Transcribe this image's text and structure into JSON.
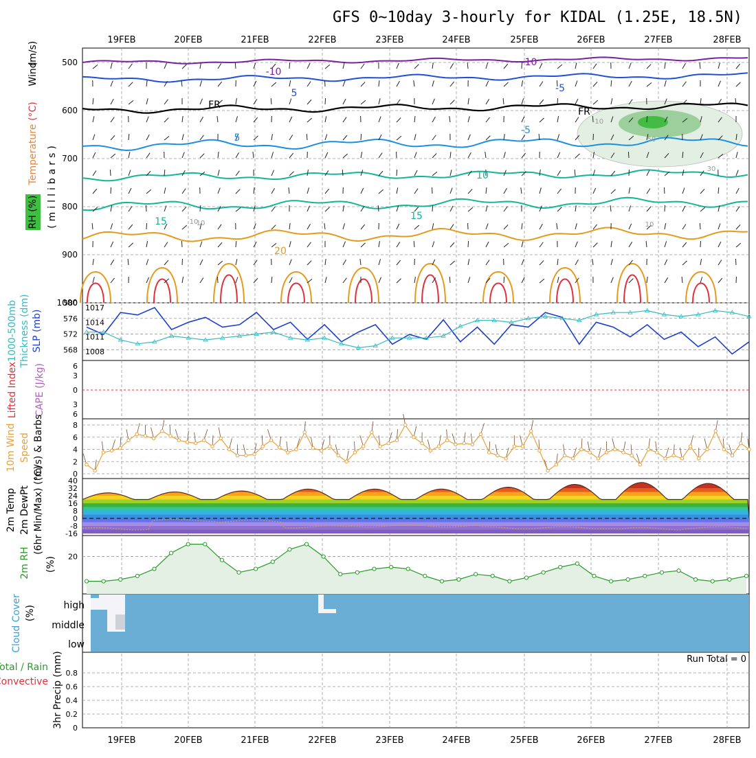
{
  "title": "GFS 0~10day 3-hourly for KIDAL (1.25E, 18.5N)",
  "dates": [
    "19FEB",
    "20FEB",
    "21FEB",
    "22FEB",
    "23FEB",
    "24FEB",
    "25FEB",
    "26FEB",
    "27FEB",
    "28FEB"
  ],
  "colors": {
    "grid": "#999999",
    "temp_contour_cold": "#7b1fa2",
    "temp_contour_blue": "#1e4fd6",
    "temp_contour_lightblue": "#1a8fe0",
    "temp_contour_teal": "#12b59a",
    "temp_contour_orange": "#e69a1c",
    "temp_contour_red": "#e0303b",
    "slp_line": "#1c3fcf",
    "thickness_line": "#33bbc0",
    "wind_speed": "#e8a13a",
    "rh_line": "#2a9a2a",
    "cloud": "#6aaed6"
  },
  "panels": {
    "upper": {
      "labels": {
        "wind": "Wind",
        "units_ms": "(m/s)",
        "temperature": "Temperature",
        "units_c": "(°C)",
        "rh": "RH (%)",
        "millibars": "(millibars)"
      },
      "yticks": [
        "500",
        "600",
        "700",
        "800",
        "900",
        "1000"
      ],
      "contour_labels": [
        "-10",
        "-10",
        "5",
        "-5",
        "FR",
        "FR",
        "5",
        "-5",
        "10",
        "15",
        "15",
        "10",
        "-10",
        "20",
        "10",
        "50",
        "30",
        "10"
      ]
    },
    "slp": {
      "labels": {
        "thickness": "1000-500mb",
        "thickness2": "Thickness (dm)",
        "slp": "SLP (mb)"
      },
      "yticks_left": [
        "580",
        "576",
        "572",
        "568"
      ],
      "yticks_right": [
        "1017",
        "1014",
        "1011",
        "1008"
      ]
    },
    "lifted": {
      "labels": {
        "lifted": "Lifted Index",
        "cape": "CAPE (J/kg)"
      },
      "yticks": [
        "6",
        "3",
        "0",
        "3",
        "6"
      ]
    },
    "wind10": {
      "labels": {
        "l1": "10m Wind",
        "l2": "Speed",
        "l3": "(m/s) & Barbs"
      },
      "yticks": [
        "8",
        "6",
        "4",
        "2",
        "0"
      ]
    },
    "temp2m": {
      "labels": {
        "l1": "2m Temp",
        "l2": "2m DewPt",
        "l3": "(6hr Min/Max) (°C)"
      },
      "yticks": [
        "40",
        "32",
        "24",
        "16",
        "8",
        "0",
        "-8",
        "-16"
      ]
    },
    "rh2m": {
      "labels": {
        "l1": "2m RH",
        "l2": "(%)"
      },
      "yticks": [
        "20"
      ]
    },
    "cloud": {
      "labels": {
        "l1": "Cloud Cover",
        "l2": "(%)"
      },
      "levels": [
        "high",
        "middle",
        "low"
      ]
    },
    "precip": {
      "labels": {
        "l1": "Total / Rain",
        "l2": "Convective",
        "l3": "3hr Precip (mm)"
      },
      "yticks": [
        "0.8",
        "0.6",
        "0.4",
        "0.2",
        "0"
      ],
      "run_total": "Run Total = 0"
    }
  },
  "chart_data": [
    {
      "type": "line",
      "title": "SLP (mb)",
      "x": [
        "18FEB12",
        "18FEB18",
        "19FEB00",
        "19FEB06",
        "19FEB12",
        "19FEB18",
        "20FEB00",
        "20FEB06",
        "20FEB12",
        "20FEB18",
        "21FEB00",
        "21FEB06",
        "21FEB12",
        "21FEB18",
        "22FEB00",
        "22FEB06",
        "22FEB12",
        "22FEB18",
        "23FEB00",
        "23FEB06",
        "23FEB12",
        "23FEB18",
        "24FEB00",
        "24FEB06",
        "24FEB12",
        "24FEB18",
        "25FEB00",
        "25FEB06",
        "25FEB12",
        "25FEB18",
        "26FEB00",
        "26FEB06",
        "26FEB12",
        "26FEB18",
        "27FEB00",
        "27FEB06",
        "27FEB12",
        "27FEB18",
        "28FEB00",
        "28FEB06"
      ],
      "series": [
        {
          "name": "SLP (mb)",
          "values": [
            1013,
            1011.5,
            1016,
            1015.5,
            1017,
            1012.5,
            1014,
            1015,
            1013,
            1013.5,
            1016,
            1012.5,
            1014,
            1010.5,
            1013.5,
            1010,
            1012,
            1013.5,
            1009.5,
            1011.5,
            1010.5,
            1014.5,
            1010,
            1013,
            1009.5,
            1013.5,
            1013,
            1016,
            1015,
            1009.5,
            1014,
            1013,
            1011,
            1013.5,
            1010.5,
            1012,
            1009,
            1011,
            1007.5,
            1010
          ]
        },
        {
          "name": "1000-500mb Thickness (dm)",
          "values": [
            572.5,
            572.5,
            570.5,
            569.5,
            570,
            571.5,
            571,
            570.5,
            571,
            571.5,
            572,
            572.5,
            571,
            570.5,
            571,
            569.5,
            568.5,
            569,
            571,
            571,
            571,
            571.5,
            574,
            575.5,
            575.5,
            575,
            576,
            576.5,
            576,
            575.5,
            577,
            577.5,
            577.5,
            578,
            577,
            576.5,
            577,
            578,
            577.5,
            576.5
          ]
        }
      ],
      "yrange_slp": [
        1006,
        1017
      ],
      "yrange_thickness": [
        566,
        580
      ]
    },
    {
      "type": "line",
      "title": "10m Wind Speed (m/s)",
      "x_count": 80,
      "series": [
        {
          "name": "10m Wind Speed",
          "values": [
            1.5,
            0.5,
            3.5,
            3.8,
            4.2,
            5.5,
            6.5,
            6.2,
            5.8,
            7,
            6.2,
            5.5,
            5.2,
            5,
            5.5,
            4.5,
            5.8,
            4,
            3,
            3,
            3.2,
            4.5,
            5.5,
            4.3,
            3.5,
            4,
            6.8,
            4.2,
            3.8,
            4.5,
            3,
            2,
            3.5,
            4.5,
            6.8,
            4.5,
            5,
            5.5,
            8,
            6,
            5,
            3.8,
            4.5,
            5.5,
            4.8,
            5,
            4.8,
            6.5,
            3.5,
            3,
            2.5,
            4.5,
            4.5,
            7,
            3.8,
            0.5,
            1.5,
            3,
            2.5,
            4,
            3.5,
            2.5,
            3.5,
            4,
            3.5,
            3,
            1.5,
            4,
            3.5,
            2.5,
            3,
            2.5,
            4.5,
            2.5,
            4,
            7,
            4,
            3,
            5,
            4
          ]
        }
      ],
      "yrange": [
        0,
        8
      ]
    },
    {
      "type": "area",
      "title": "2m Temp / 2m DewPt (°C)",
      "series": [
        {
          "name": "2m Temp (max)",
          "values": [
            27,
            28,
            29,
            31,
            31,
            31,
            33,
            36,
            38,
            37
          ]
        },
        {
          "name": "2m Temp (min)",
          "values": [
            18,
            19,
            20,
            20,
            20,
            21,
            21,
            22,
            23,
            24
          ]
        },
        {
          "name": "2m DewPt",
          "values": [
            -11,
            -2,
            -3,
            -9,
            -8,
            -8,
            -10,
            -10,
            -11,
            -10
          ]
        }
      ],
      "yrange": [
        -16,
        40
      ]
    },
    {
      "type": "area",
      "title": "2m RH (%)",
      "x_count": 40,
      "series": [
        {
          "name": "2m RH",
          "values": [
            6,
            6,
            7,
            9,
            13,
            22,
            27,
            27,
            18,
            11,
            13,
            17,
            24,
            27,
            20,
            10,
            11,
            13,
            14,
            13,
            9,
            6,
            7,
            10,
            9,
            6,
            8,
            11,
            14,
            16,
            9,
            6,
            7,
            9,
            11,
            12,
            7,
            6,
            7,
            9
          ]
        }
      ],
      "yrange": [
        0,
        30
      ]
    },
    {
      "type": "heatmap",
      "title": "Cloud Cover (%)",
      "levels": [
        "high",
        "middle",
        "low"
      ],
      "note": "near 0% (blue) throughout except small high-cloud fractions near 19FEB and 22FEB"
    },
    {
      "type": "bar",
      "title": "3hr Precip (mm)",
      "values": [],
      "yrange": [
        0,
        0.9
      ]
    }
  ]
}
